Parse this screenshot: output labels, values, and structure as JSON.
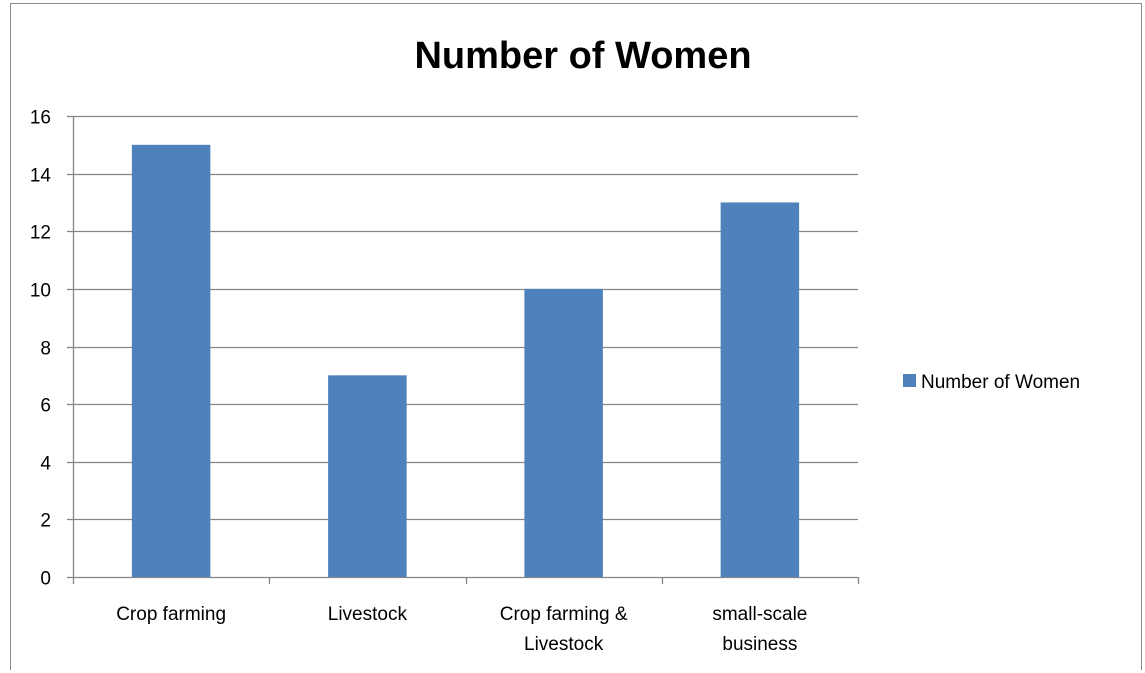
{
  "chart_data": {
    "type": "bar",
    "title": "Number of Women",
    "categories": [
      [
        "Crop farming"
      ],
      [
        "Livestock"
      ],
      [
        "Crop farming &",
        "Livestock"
      ],
      [
        "small-scale",
        "business"
      ]
    ],
    "series": [
      {
        "name": "Number of Women",
        "values": [
          15,
          7,
          10,
          13
        ],
        "color": "#4f81bd"
      }
    ],
    "ylim": [
      0,
      16
    ],
    "yticks": [
      0,
      2,
      4,
      6,
      8,
      10,
      12,
      14,
      16
    ],
    "grid": true,
    "legend_position": "right",
    "xlabel": "",
    "ylabel": ""
  }
}
